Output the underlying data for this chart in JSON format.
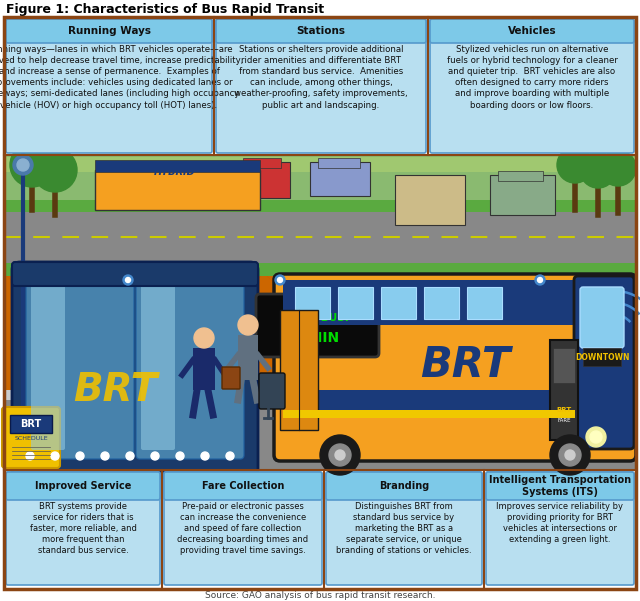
{
  "title": "Figure 1: Characteristics of Bus Rapid Transit",
  "source": "Source: GAO analysis of bus rapid transit research.",
  "top_boxes": [
    {
      "header": "Running Ways",
      "body": "Running ways—lanes in which BRT vehicles operate—are\nimproved to help decrease travel time, increase predictability,\nand increase a sense of permanence.  Examples of\nimprovements include: vehicles using dedicated lanes or\nguideways; semi-dedicated lanes (including high occupancy\nvehicle (HOV) or high occupancy toll (HOT) lanes)."
    },
    {
      "header": "Stations",
      "body": "Stations or shelters provide additional\nrider amenities and differentiate BRT\nfrom standard bus service.  Amenities\ncan include, among other things,\nweather-proofing, safety improvements,\npublic art and landscaping."
    },
    {
      "header": "Vehicles",
      "body": "Stylized vehicles run on alternative\nfuels or hybrid technology for a cleaner\nand quieter trip.  BRT vehicles are also\noften designed to carry more riders\nand improve boarding with multiple\nboarding doors or low floors."
    }
  ],
  "bottom_boxes": [
    {
      "header": "Improved Service",
      "body": "BRT systems provide\nservice for riders that is\nfaster, more reliable, and\nmore frequent than\nstandard bus service."
    },
    {
      "header": "Fare Collection",
      "body": "Pre-paid or electronic passes\ncan increase the convenience\nand speed of fare collection\ndecreasing boarding times and\nproviding travel time savings."
    },
    {
      "header": "Branding",
      "body": "Distinguishes BRT from\nstandard bus service by\nmarketing the BRT as a\nseparate service, or unique\nbranding of stations or vehicles."
    },
    {
      "header": "Intelligent Transportation\nSystems (ITS)",
      "body": "Improves service reliability by\nproviding priority for BRT\nvehicles at intersections or\nextending a green light."
    }
  ],
  "outer_border": "#8B4513",
  "outer_border_lw": 2.5,
  "bg_white": "#ffffff",
  "box_bg": "#b8dff0",
  "box_header_bg": "#7dc9e8",
  "box_border": "#5599cc",
  "illus_sky": "#9fd4e8",
  "illus_bg_road": "#b0b8b0",
  "illus_road": "#888888",
  "illus_sidewalk": "#cccccc",
  "illus_platform": "#cc6600",
  "shelter_body": "#1a4a7a",
  "shelter_glass": "#4a9acc",
  "shelter_glass_light": "#90cce8",
  "bus_orange": "#f5a020",
  "bus_blue": "#1a3a7a",
  "bus_yellow": "#f0c800",
  "bus_window": "#88ccee",
  "display_bg": "#111111",
  "display_green": "#00dd00",
  "tree_trunk": "#5a3a10",
  "tree_green": "#3a8a30",
  "grass_green": "#5aaa40",
  "road_yellow": "#ddcc00",
  "sign_yellow": "#f0c000",
  "sign_blue": "#1a3a7a",
  "person1_body": "#1a2a6a",
  "person2_body": "#607080",
  "skin": "#f0c090",
  "luggage_dark": "#334455",
  "fare_machine": "#333333",
  "car1": "#cc4444",
  "car2": "#aaaacc",
  "car3": "#ccbb88",
  "car4": "#88aa88",
  "wifi_color": "#4488cc",
  "source_color": "#444444"
}
